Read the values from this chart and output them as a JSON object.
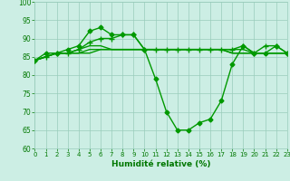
{
  "bg_color": "#cceee4",
  "grid_color": "#99ccbb",
  "line_color": "#009900",
  "marker_color": "#009900",
  "xlabel": "Humidité relative (%)",
  "xlabel_color": "#007700",
  "tick_color": "#007700",
  "ylim": [
    60,
    100
  ],
  "xlim": [
    0,
    23
  ],
  "yticks": [
    60,
    65,
    70,
    75,
    80,
    85,
    90,
    95,
    100
  ],
  "xticks": [
    0,
    1,
    2,
    3,
    4,
    5,
    6,
    7,
    8,
    9,
    10,
    11,
    12,
    13,
    14,
    15,
    16,
    17,
    18,
    19,
    20,
    21,
    22,
    23
  ],
  "series": [
    {
      "x": [
        0,
        1,
        2,
        3,
        4,
        5,
        6,
        7,
        8,
        9,
        10,
        11,
        12,
        13,
        14,
        15,
        16,
        17,
        18,
        19,
        20,
        21,
        22,
        23
      ],
      "y": [
        84,
        86,
        86,
        87,
        88,
        92,
        93,
        91,
        91,
        91,
        87,
        79,
        70,
        65,
        65,
        67,
        68,
        73,
        83,
        88,
        86,
        86,
        88,
        86
      ],
      "marker": "D",
      "markersize": 2.5,
      "linewidth": 1.0
    },
    {
      "x": [
        0,
        1,
        2,
        3,
        4,
        5,
        6,
        7,
        8,
        9,
        10,
        11,
        12,
        13,
        14,
        15,
        16,
        17,
        18,
        19,
        20,
        21,
        22,
        23
      ],
      "y": [
        84,
        85,
        86,
        86,
        87,
        88,
        88,
        87,
        87,
        87,
        87,
        87,
        87,
        87,
        87,
        87,
        87,
        87,
        87,
        87,
        86,
        86,
        86,
        86
      ],
      "marker": null,
      "markersize": 0,
      "linewidth": 1.0
    },
    {
      "x": [
        0,
        1,
        2,
        3,
        4,
        5,
        6,
        7,
        8,
        9,
        10,
        11,
        12,
        13,
        14,
        15,
        16,
        17,
        18,
        19,
        20,
        21,
        22,
        23
      ],
      "y": [
        84,
        85,
        86,
        86,
        86,
        87,
        87,
        87,
        87,
        87,
        87,
        87,
        87,
        87,
        87,
        87,
        87,
        87,
        86,
        86,
        86,
        86,
        86,
        86
      ],
      "marker": null,
      "markersize": 0,
      "linewidth": 1.0
    },
    {
      "x": [
        0,
        1,
        2,
        3,
        4,
        5,
        6,
        7,
        8,
        9,
        10,
        11,
        12,
        13,
        14,
        15,
        16,
        17,
        18,
        19,
        20,
        21,
        22,
        23
      ],
      "y": [
        84,
        85,
        86,
        86,
        86,
        86,
        87,
        87,
        87,
        87,
        87,
        87,
        87,
        87,
        87,
        87,
        87,
        87,
        86,
        86,
        86,
        86,
        86,
        86
      ],
      "marker": null,
      "markersize": 0,
      "linewidth": 1.0
    },
    {
      "x": [
        0,
        1,
        2,
        3,
        4,
        5,
        6,
        7,
        8,
        9,
        10,
        11,
        12,
        13,
        14,
        15,
        16,
        17,
        18,
        19,
        20,
        21,
        22,
        23
      ],
      "y": [
        84,
        85,
        86,
        86,
        87,
        89,
        90,
        90,
        91,
        91,
        87,
        87,
        87,
        87,
        87,
        87,
        87,
        87,
        87,
        88,
        86,
        88,
        88,
        86
      ],
      "marker": "+",
      "markersize": 4,
      "linewidth": 1.0
    }
  ]
}
